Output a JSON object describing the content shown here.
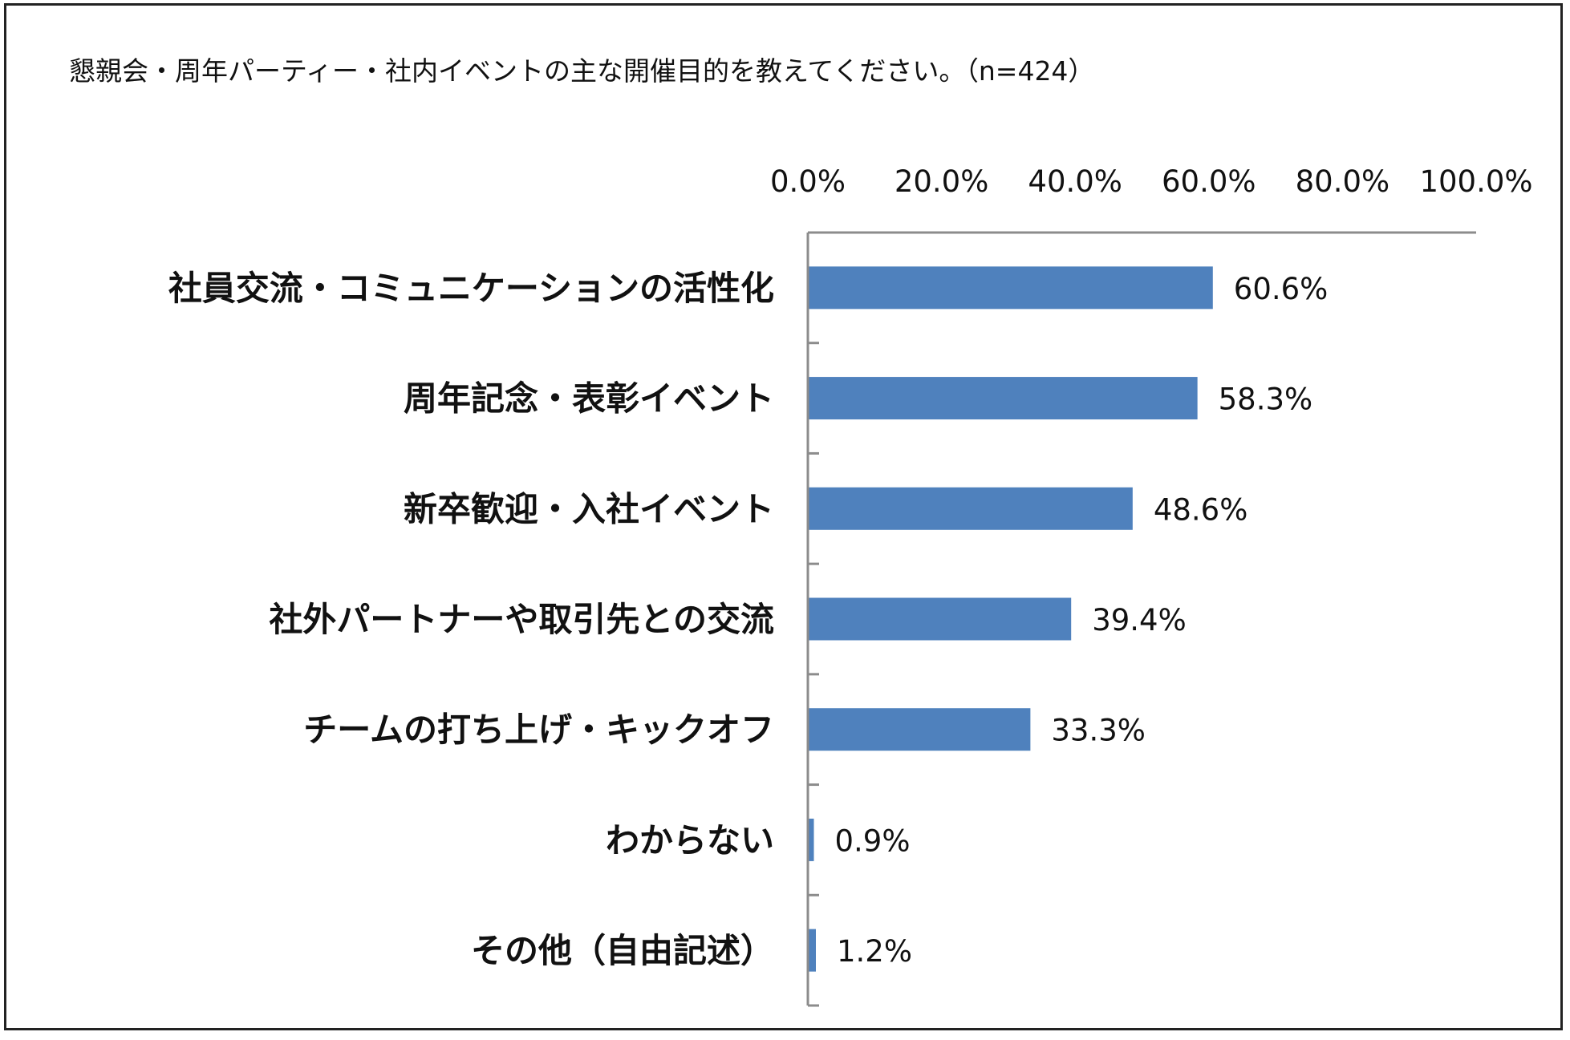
{
  "chart_data": {
    "type": "bar",
    "orientation": "horizontal",
    "title": "懇親会・周年パーティー・社内イベントの主な開催目的を教えてください。（n=424）",
    "categories": [
      "社員交流・コミュニケーションの活性化",
      "周年記念・表彰イベント",
      "新卒歓迎・入社イベント",
      "社外パートナーや取引先との交流",
      "チームの打ち上げ・キックオフ",
      "わからない",
      "その他（自由記述）"
    ],
    "values": [
      60.6,
      58.3,
      48.6,
      39.4,
      33.3,
      0.9,
      1.2
    ],
    "value_labels": [
      "60.6%",
      "58.3%",
      "48.6%",
      "39.4%",
      "33.3%",
      "0.9%",
      "1.2%"
    ],
    "xlim": [
      0,
      100
    ],
    "x_ticks": [
      0,
      20,
      40,
      60,
      80,
      100
    ],
    "x_tick_labels": [
      "0.0%",
      "20.0%",
      "40.0%",
      "60.0%",
      "80.0%",
      "100.0%"
    ],
    "x_axis_position": "top",
    "grid": false,
    "legend": "none",
    "bar_color": "#4F81BD"
  }
}
